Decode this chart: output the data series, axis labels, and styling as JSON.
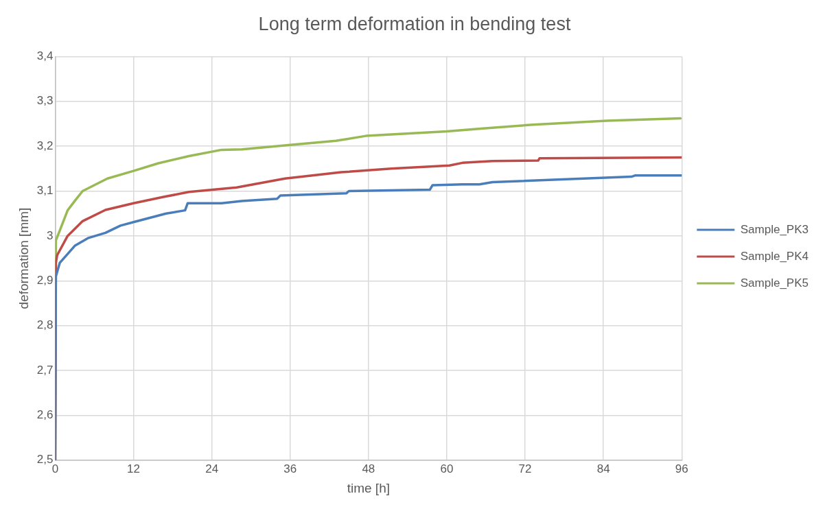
{
  "chart_data": {
    "type": "line",
    "title": "Long term deformation in bending test",
    "xlabel": "time [h]",
    "ylabel": "deformation [mm]",
    "xlim": [
      0,
      96
    ],
    "xticks": [
      0,
      12,
      24,
      36,
      48,
      60,
      72,
      84,
      96
    ],
    "ylim": [
      2.5,
      3.4
    ],
    "yticks": [
      {
        "value": 2.5,
        "label": "2,5"
      },
      {
        "value": 2.6,
        "label": "2,6"
      },
      {
        "value": 2.7,
        "label": "2,7"
      },
      {
        "value": 2.8,
        "label": "2,8"
      },
      {
        "value": 2.9,
        "label": "2,9"
      },
      3,
      {
        "value": 3.1,
        "label": "3,1"
      },
      {
        "value": 3.2,
        "label": "3,2"
      },
      {
        "value": 3.3,
        "label": "3,3"
      },
      {
        "value": 3.4,
        "label": "3,4"
      }
    ],
    "grid": true,
    "legend": "right",
    "marker": "none",
    "line_style": "solid",
    "series": [
      {
        "name": "Sample_PK3",
        "color": "#4a7ebb",
        "x": [
          0,
          0.1,
          0.7,
          3,
          5,
          7.7,
          10,
          12.3,
          17,
          19.9,
          20.3,
          25.5,
          28.6,
          34,
          34.5,
          44.6,
          45,
          57.4,
          57.8,
          62.4,
          65,
          67,
          88.3,
          88.9,
          96
        ],
        "values": [
          2.5,
          2.91,
          2.94,
          2.978,
          2.995,
          3.007,
          3.023,
          3.032,
          3.05,
          3.057,
          3.073,
          3.073,
          3.078,
          3.083,
          3.09,
          3.095,
          3.1,
          3.103,
          3.113,
          3.115,
          3.115,
          3.12,
          3.132,
          3.135,
          3.135
        ]
      },
      {
        "name": "Sample_PK4",
        "color": "#be4b48",
        "x": [
          0,
          0.1,
          0.3,
          1.9,
          4.2,
          7.7,
          12,
          16.6,
          20.5,
          27.8,
          35.2,
          43.8,
          51.5,
          60.4,
          62.4,
          67,
          74,
          74.2,
          96
        ],
        "values": [
          2.5,
          2.94,
          2.957,
          3,
          3.033,
          3.058,
          3.073,
          3.087,
          3.098,
          3.108,
          3.128,
          3.142,
          3.15,
          3.157,
          3.163,
          3.167,
          3.168,
          3.173,
          3.175
        ]
      },
      {
        "name": "Sample_PK5",
        "color": "#98b954",
        "x": [
          0,
          0.1,
          0.7,
          1.9,
          3,
          4.2,
          8,
          12,
          15.8,
          20.5,
          25.5,
          28.6,
          36,
          43,
          47.6,
          60,
          65.9,
          73.2,
          84.5,
          95.8
        ],
        "values": [
          2.5,
          2.99,
          3.012,
          3.057,
          3.078,
          3.1,
          3.128,
          3.145,
          3.162,
          3.178,
          3.192,
          3.193,
          3.203,
          3.212,
          3.223,
          3.233,
          3.24,
          3.248,
          3.257,
          3.262
        ]
      }
    ]
  }
}
